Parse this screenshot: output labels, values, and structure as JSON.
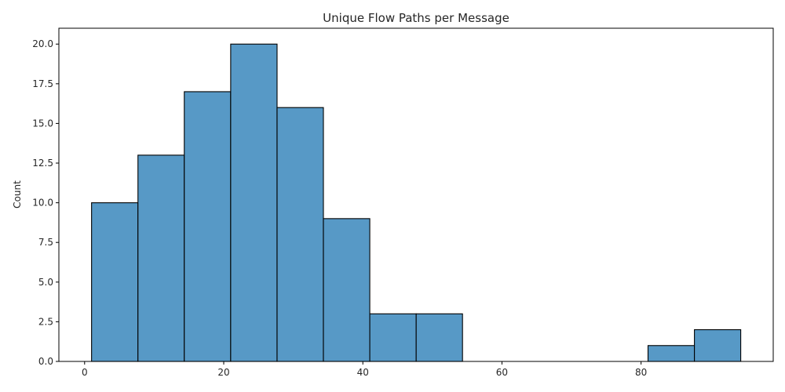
{
  "chart_data": {
    "type": "bar",
    "title": "Unique Flow Paths per Message",
    "xlabel": "",
    "ylabel": "Count",
    "bin_edges": [
      1.0,
      7.67,
      14.33,
      21.0,
      27.67,
      34.33,
      41.0,
      47.67,
      54.33,
      61.0,
      67.67,
      74.33,
      81.0,
      87.67,
      94.33
    ],
    "counts": [
      10,
      13,
      17,
      20,
      16,
      9,
      3,
      3,
      0,
      0,
      0,
      0,
      1,
      2
    ],
    "xlim": [
      -3.7,
      99.0
    ],
    "ylim": [
      0,
      21
    ],
    "xticks": [
      0,
      20,
      40,
      60,
      80
    ],
    "yticks": [
      0.0,
      2.5,
      5.0,
      7.5,
      10.0,
      12.5,
      15.0,
      17.5,
      20.0
    ],
    "xtick_labels": [
      "0",
      "20",
      "40",
      "60",
      "80"
    ],
    "ytick_labels": [
      "0.0",
      "2.5",
      "5.0",
      "7.5",
      "10.0",
      "12.5",
      "15.0",
      "17.5",
      "20.0"
    ],
    "bar_color": "#5799c6",
    "edge_color": "#000000",
    "grid": false,
    "legend": "none"
  }
}
